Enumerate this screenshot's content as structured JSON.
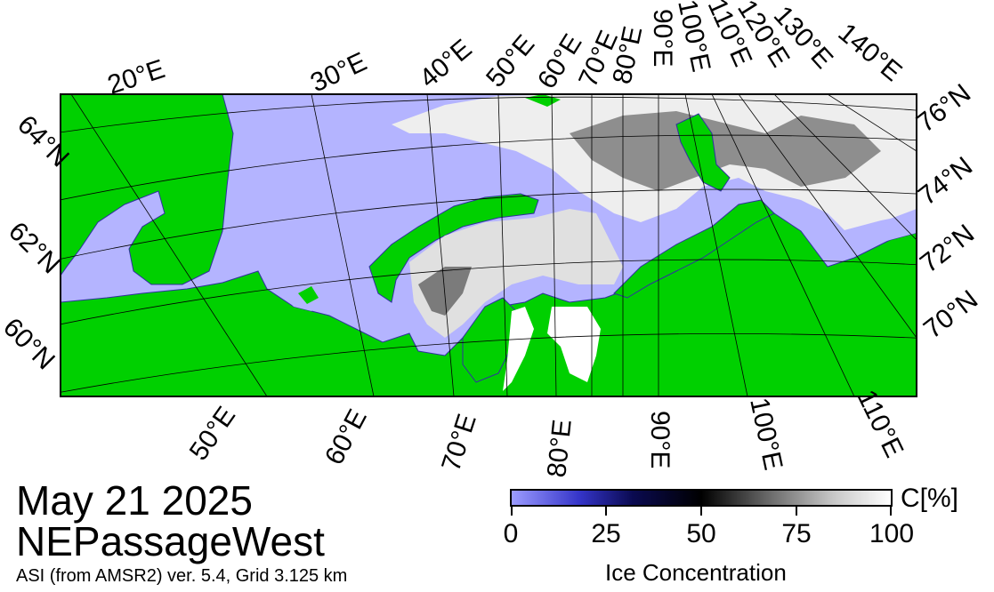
{
  "map": {
    "colors": {
      "sea": "#b4b4ff",
      "land": "#00d000",
      "ice_white": "#ffffff",
      "ice_dark": "#202020",
      "coast": "#3030a0",
      "grid": "#000000",
      "missing": "#909090"
    },
    "top_meridian_labels": [
      "20°E",
      "30°E",
      "40°E",
      "50°E",
      "60°E",
      "70°E",
      "80°E",
      "90°E",
      "100°E",
      "110°E",
      "120°E",
      "130°E",
      "140°E"
    ],
    "bottom_meridian_labels": [
      "50°E",
      "60°E",
      "70°E",
      "80°E",
      "90°E",
      "100°E",
      "110°E"
    ],
    "left_parallel_labels": [
      "64°N",
      "62°N",
      "60°N"
    ],
    "right_parallel_labels": [
      "76°N",
      "74°N",
      "72°N",
      "70°N"
    ]
  },
  "title": {
    "date": "May 21 2025",
    "region": "NEPassageWest",
    "credit": "ASI (from AMSR2) ver. 5.4,  Grid 3.125 km"
  },
  "colorbar": {
    "unit": "C[%]",
    "ticks": [
      "0",
      "25",
      "50",
      "75",
      "100"
    ],
    "title": "Ice Concentration"
  }
}
